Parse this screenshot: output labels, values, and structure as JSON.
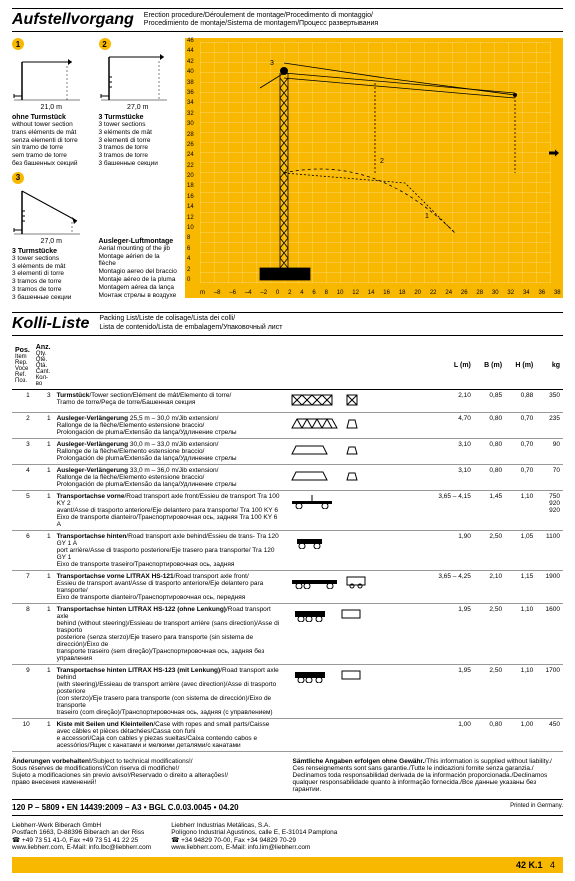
{
  "sections": {
    "erection": {
      "title": "Aufstellvorgang",
      "subtitle": "Erection procedure/Déroulement de montage/Procedimento di montaggio/\nProcedimiento de montaje/Sistema de montagem/Процесс развертывания"
    },
    "kolli": {
      "title": "Kolli-Liste",
      "subtitle": "Packing List/Liste de colisage/Lista dei colli/\nLista de contenido/Lista de embalagem/Упаковочный лист"
    }
  },
  "configs": [
    {
      "badge": "1",
      "dim": "21,0 m",
      "label": "ohne Turmstück",
      "trans": "without tower section\ntrans eléments de mât\nsenza elementi di torre\nsin tramo de torre\nsem tramo de torre\nбез башенных секций"
    },
    {
      "badge": "2",
      "dim": "27,0 m",
      "label": "3 Turmstücke",
      "trans": "3 tower sections\n3 eléments de mât\n3 elementi di torre\n3 tramos de torre\n3 tramos de torre\n3 башенные секции"
    },
    {
      "badge": "3",
      "dim": "27,0 m",
      "label": "3 Turmstücke",
      "trans": "3 tower sections\n3 eléments de mât\n3 elementi di torre\n3 tramos de torre\n3 tramos de torre\n3 башенные секции"
    },
    {
      "badge": "",
      "dim": "",
      "label": "Ausleger-Luftmontage",
      "trans": "Aerial mounting of the jib\nMontage aérien de la flèche\nMontagio aereo del braccio\nMontaje aéreo de la pluma\nMontagem aérea da lança\nМонтаж стрелы в воздухе"
    }
  ],
  "chart": {
    "y_ticks": [
      "46",
      "44",
      "42",
      "40",
      "38",
      "36",
      "34",
      "32",
      "30",
      "28",
      "26",
      "24",
      "22",
      "20",
      "18",
      "16",
      "14",
      "12",
      "10",
      "8",
      "6",
      "4",
      "2",
      "0"
    ],
    "x_ticks": [
      "m",
      "–8",
      "–6",
      "–4",
      "–2",
      "0",
      "2",
      "4",
      "6",
      "8",
      "10",
      "12",
      "14",
      "16",
      "18",
      "20",
      "22",
      "24",
      "26",
      "28",
      "30",
      "32",
      "34",
      "36",
      "38"
    ],
    "bg_color": "#f9b800"
  },
  "table": {
    "col_headers": {
      "pos": "Pos.",
      "qty": "Anz.",
      "l": "L (m)",
      "b": "B (m)",
      "h": "H (m)",
      "kg": "kg"
    },
    "pos_trans": "Item\nRep.\nVoce\nRef.\nПоз.",
    "qty_trans": "Qty.\nQté.\nQtà.\nCant.\nКол-во",
    "rows": [
      {
        "pos": "1",
        "qty": "3",
        "desc_b": "Turmstück",
        "desc": "/Tower section/Elément de mât/Elemento di torre/\nTramo de torre/Peça de torre/Башенная секция",
        "l": "2,10",
        "b": "0,85",
        "h": "0,88",
        "kg": "350"
      },
      {
        "pos": "2",
        "qty": "1",
        "desc_b": "Ausleger-Verlängerung",
        "desc": " 25,5 m – 30,0 m/Jib extension/\nRallonge de la flèche/Elemento estensione braccio/\nProlongación de pluma/Extensão da lança/Удлинение стрелы",
        "l": "4,70",
        "b": "0,80",
        "h": "0,70",
        "kg": "235"
      },
      {
        "pos": "3",
        "qty": "1",
        "desc_b": "Ausleger-Verlängerung",
        "desc": " 30,0 m – 33,0 m/Jib extension/\nRallonge de la flèche/Elemento estensione braccio/\nProlongación de pluma/Extensão da lança/Удлинение стрелы",
        "l": "3,10",
        "b": "0,80",
        "h": "0,70",
        "kg": "90"
      },
      {
        "pos": "4",
        "qty": "1",
        "desc_b": "Ausleger-Verlängerung",
        "desc": " 33,0 m – 36,0 m/Jib extension/\nRallonge de la flèche/Elemento estensione braccio/\nProlongación de pluma/Extensão da lança/Удлинение стрелы",
        "l": "3,10",
        "b": "0,80",
        "h": "0,70",
        "kg": "70"
      },
      {
        "pos": "5",
        "qty": "1",
        "desc_b": "Transportachse vorne",
        "desc": "/Road transport axle front/Essieu de transport Tra 100 KY 2\navant/Asse di trasporto anteriore/Eje delantero para transporte/ Tra 100 KY 6\nEixo de transporte dianteiro/Транспортировочная ось, задняя Tra 100 KY 6 A",
        "l": "3,65 – 4,15",
        "b": "1,45",
        "h": "1,10",
        "kg": "750\n920\n920"
      },
      {
        "pos": "6",
        "qty": "1",
        "desc_b": "Transportachse hinten",
        "desc": "/Road transport axle behind/Essieu de trans- Tra 120 GY 1 A\nport arrière/Asse di trasporto posteriore/Eje trasero para transporte/ Tra 120 GY 1\nEixo de transporte traseiro/Транспортировочная ось, задняя",
        "l": "1,90",
        "b": "2,50",
        "h": "1,05",
        "kg": "1100"
      },
      {
        "pos": "7",
        "qty": "1",
        "desc_b": "Transportachse vorne LITRAX HS-121",
        "desc": "/Road transport axle front/\nEssieu de transport avant/Asse di trasporto anteriore/Eje delantero para transporte/\nEixo de transporte dianteiro/Транспортировочная ось, передняя",
        "l": "3,65 – 4,25",
        "b": "2,10",
        "h": "1,15",
        "kg": "1900"
      },
      {
        "pos": "8",
        "qty": "1",
        "desc_b": "Transportachse hinten LITRAX HS-122 (ohne Lenkung)",
        "desc": "/Road transport axle\nbehind (without steering)/Essieau de transport arrière (sans direction)/Asse di trasporto\nposteriore (senza sterzo)/Eje trasero para transporte (sin sistema de dirección)/Eixo de\ntransporte traseiro (sem direção)/Транспортировочная ось, задняя без управления",
        "l": "1,95",
        "b": "2,50",
        "h": "1,10",
        "kg": "1600"
      },
      {
        "pos": "9",
        "qty": "1",
        "desc_b": "Transportachse hinten LITRAX HS-123 (mit Lenkung)",
        "desc": "/Road transport axle behind\n(with steering)/Essieau de transport arrière (avec direction)/Asse di trasporto posteriore\n(con sterzo)/Eje trasero para transporte (con sistema de dirección)/Eixo de transporte\ntraseiro (com direção)/Транспортировочная ось, задняя (с управлением)",
        "l": "1,95",
        "b": "2,50",
        "h": "1,10",
        "kg": "1700"
      },
      {
        "pos": "10",
        "qty": "1",
        "desc_b": "Kiste mit Seilen und Kleinteilen",
        "desc": "/Case with ropes and small parts/Caisse avec câbles et pièces détachées/Cassa con funi\ne accessori/Caja con cables y piezas sueltas/Caixa contendo cabos e acessórios/Ящик с канатами и мелкими деталями/с канатами",
        "l": "1,00",
        "b": "0,80",
        "h": "1,00",
        "kg": "450"
      }
    ]
  },
  "footer": {
    "left_b": "Änderungen vorbehalten!",
    "left": "/Subject to technical modifications!/\nSous réserves de modifications!/Con riserva di modifiche!/\nSujeto a modificaciones sin previo aviso!/Reservado o direito a alterações!/\nправо внесения изменений!",
    "right_b": "Sämtliche Angaben erfolgen ohne Gewähr.",
    "right": "/This information is supplied without liability./\nCes renseignements sont sans garantie./Tutte le indicazioni fornite senza garanzia./\nDeclinamos toda responsabilidad derivada de la información proporcionada./Declinamos\nqualquer responsabilidade quanto à informação fornecida./Все данные указаны без гарантии.",
    "spec": "120 P – 5809 • EN 14439:2009 – A3 • BGL C.0.03.0045 • 04.20",
    "printed": "Printed in Germany.",
    "company1": "Liebherr-Werk Biberach GmbH\nPostfach 1663, D-88396 Biberach an der Riss\n☎ +49 73 51 41-0, Fax +49 73 51 41 22 25\nwww.liebherr.com, E-Mail: info.lbc@liebherr.com",
    "company2": "Liebherr Industrias Metálicas, S.A.\nPolígono Industrial Agustinos, calle E, E-31014 Pamplona\n☎ +34 94829 70-00, Fax +34 94829 70-29\nwww.liebherr.com, E-Mail: info.lim@liebherr.com",
    "model": "42 K.1",
    "page": "4"
  }
}
